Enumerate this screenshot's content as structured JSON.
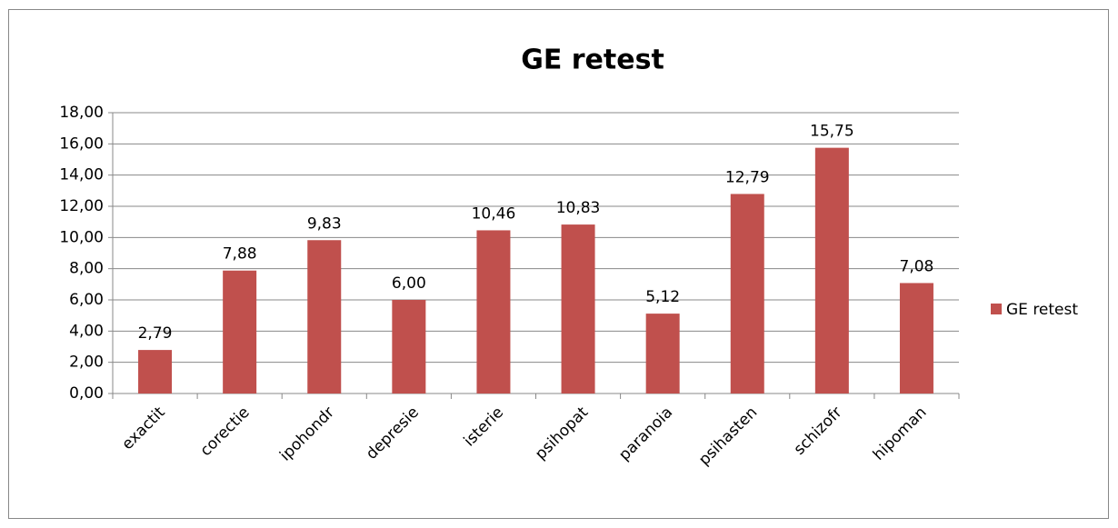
{
  "chart_data": {
    "type": "bar",
    "title": "GE retest",
    "categories": [
      "exactit",
      "corectie",
      "ipohondr",
      "depresie",
      "isterie",
      "psihopat",
      "paranoia",
      "psihasten",
      "schizofr",
      "hipoman"
    ],
    "series": [
      {
        "name": "GE retest",
        "color": "#c0504d",
        "values": [
          2.79,
          7.88,
          9.83,
          6.0,
          10.46,
          10.83,
          5.12,
          12.79,
          15.75,
          7.08
        ],
        "value_labels": [
          "2,79",
          "7,88",
          "9,83",
          "6,00",
          "10,46",
          "10,83",
          "5,12",
          "12,79",
          "15,75",
          "7,08"
        ]
      }
    ],
    "ylim": [
      0,
      18
    ],
    "yticks": [
      {
        "value": 0,
        "label": "0,00"
      },
      {
        "value": 2,
        "label": "2,00"
      },
      {
        "value": 4,
        "label": "4,00"
      },
      {
        "value": 6,
        "label": "6,00"
      },
      {
        "value": 8,
        "label": "8,00"
      },
      {
        "value": 10,
        "label": "10,00"
      },
      {
        "value": 12,
        "label": "12,00"
      },
      {
        "value": 14,
        "label": "14,00"
      },
      {
        "value": 16,
        "label": "16,00"
      },
      {
        "value": 18,
        "label": "18,00"
      }
    ],
    "grid": true,
    "legend": "right"
  }
}
